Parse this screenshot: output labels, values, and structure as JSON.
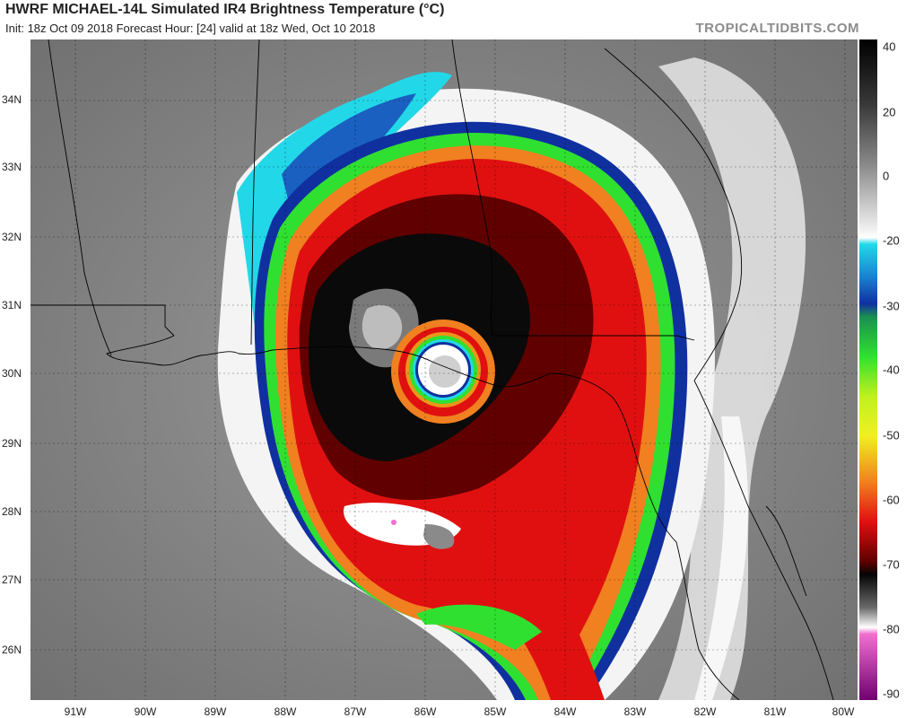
{
  "header": {
    "title": "HWRF MICHAEL-14L Simulated IR4 Brightness Temperature (°C)",
    "subtitle": "Init: 18z Oct 09 2018   Forecast Hour: [24]   valid at 18z Wed, Oct 10 2018",
    "brand": "TROPICALTIDBITS.COM"
  },
  "map": {
    "lat_labels": [
      "34N",
      "33N",
      "32N",
      "31N",
      "30N",
      "29N",
      "28N",
      "27N",
      "26N"
    ],
    "lon_labels": [
      "91W",
      "90W",
      "89W",
      "88W",
      "87W",
      "86W",
      "85W",
      "84W",
      "83W",
      "82W",
      "81W",
      "80W"
    ]
  },
  "colorbar": {
    "ticks": [
      "40",
      "20",
      "0",
      "-20",
      "-30",
      "-40",
      "-50",
      "-60",
      "-70",
      "-80",
      "-90"
    ],
    "colors": {
      "warm": "#000000",
      "grey": "#8a8a8a",
      "white": "#ffffff",
      "cyan": "#22d8e8",
      "blue": "#1030a0",
      "green": "#30e030",
      "yellow": "#f0f020",
      "orange": "#f08020",
      "red": "#e01010",
      "darkred": "#600000",
      "black": "#050505",
      "pink": "#f070d0",
      "purple": "#700070"
    }
  }
}
